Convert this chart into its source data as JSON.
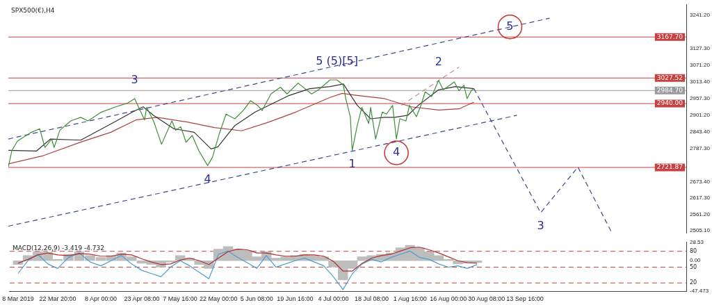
{
  "chart_data": [
    {
      "type": "line",
      "title": "SPX500(€),H4",
      "xlim": [
        "2019-03-04T21:00",
        "2019-11-13T01:00"
      ],
      "ylim": [
        2498,
        3278
      ],
      "yticks": [
        {
          "value": 3241.2,
          "label": "3241.20"
        },
        {
          "value": 3127.3,
          "label": "3127.30"
        },
        {
          "value": 3071.2,
          "label": "3071.20"
        },
        {
          "value": 3013.4,
          "label": "3013.40"
        },
        {
          "value": 2957.3,
          "label": "2957.30"
        },
        {
          "value": 2901.2,
          "label": "2901.20"
        },
        {
          "value": 2843.4,
          "label": "2843.40"
        },
        {
          "value": 2787.3,
          "label": "2787.30"
        },
        {
          "value": 2673.4,
          "label": "2673.40"
        },
        {
          "value": 2617.3,
          "label": "2617.30"
        },
        {
          "value": 2561.2,
          "label": "2561.20"
        },
        {
          "value": 2505.1,
          "label": "2505.10"
        }
      ],
      "tick_labels": "y",
      "grid": false,
      "legend": false,
      "series": [
        {
          "color": "#3f8f3a",
          "line_style": "solid",
          "x": [
            "2019-03-04T21:00",
            "2019-03-06T05:00",
            "2019-03-08T07:00",
            "2019-03-13T12:00",
            "2019-03-16T14:00",
            "2019-03-18T13:00",
            "2019-03-21T01:00",
            "2019-03-21T23:00",
            "2019-03-24T03:00",
            "2019-03-28T04:00",
            "2019-03-31T21:00",
            "2019-04-03T15:00",
            "2019-04-08T15:00",
            "2019-04-14T00:00",
            "2019-04-18T06:00",
            "2019-04-21T01:00",
            "2019-04-24T18:00",
            "2019-04-25T12:00",
            "2019-04-28T02:00",
            "2019-05-01T02:00",
            "2019-05-04T23:00",
            "2019-05-06T09:00",
            "2019-05-08T06:00",
            "2019-05-10T06:00",
            "2019-05-12T13:00",
            "2019-05-14T23:00",
            "2019-05-18T07:00",
            "2019-05-20T03:00",
            "2019-05-22T14:00",
            "2019-05-25T04:00",
            "2019-05-28T11:00",
            "2019-05-31T18:00",
            "2019-06-03T08:00",
            "2019-06-05T22:00",
            "2019-06-07T15:00",
            "2019-06-10T22:00",
            "2019-06-14T12:00",
            "2019-06-16T23:00",
            "2019-06-21T02:00",
            "2019-06-26T03:00",
            "2019-06-28T17:00",
            "2019-07-03T00:00",
            "2019-07-05T14:00",
            "2019-07-08T00:00",
            "2019-07-08T21:00",
            "2019-07-10T14:00",
            "2019-07-11T07:00",
            "2019-07-13T04:00",
            "2019-07-14T21:00",
            "2019-07-17T11:00",
            "2019-07-18T04:00",
            "2019-07-20T01:00",
            "2019-07-22T12:00",
            "2019-07-24T02:00",
            "2019-07-26T09:00",
            "2019-07-27T19:00",
            "2019-07-29T02:00",
            "2019-07-31T09:00",
            "2019-08-01T16:00",
            "2019-08-04T06:00",
            "2019-08-05T16:00",
            "2019-08-07T13:00",
            "2019-08-09T23:00",
            "2019-08-12T13:00",
            "2019-08-14T07:00",
            "2019-08-18T10:00",
            "2019-08-20T04:00",
            "2019-08-22T00:00",
            "2019-08-23T04:00",
            "2019-08-24T18:00",
            "2019-08-25T18:00"
          ],
          "values": [
            2723,
            2780,
            2812,
            2842,
            2854,
            2790,
            2819,
            2790,
            2849,
            2881,
            2893,
            2881,
            2911,
            2929,
            2941,
            2957,
            2884,
            2927,
            2881,
            2801,
            2881,
            2849,
            2861,
            2808,
            2831,
            2780,
            2728,
            2757,
            2835,
            2904,
            2888,
            2918,
            2950,
            2934,
            2916,
            2973,
            2996,
            2973,
            3010,
            2973,
            2987,
            3021,
            3021,
            3003,
            2957,
            2895,
            2780,
            2865,
            2927,
            2872,
            2927,
            2819,
            2911,
            2904,
            2934,
            2819,
            2888,
            2881,
            2934,
            2895,
            2927,
            2980,
            2964,
            3019,
            2987,
            3014,
            2984,
            3003,
            2957,
            2984,
            2991
          ]
        },
        {
          "color": "#333333",
          "line_style": "solid",
          "x": [
            "2019-03-04T21:00",
            "2019-03-15T10:00",
            "2019-03-20T15:00",
            "2019-03-31T21:00",
            "2019-04-12T03:00",
            "2019-04-20T06:00",
            "2019-04-24T05:00",
            "2019-04-28T02:00",
            "2019-05-05T16:00",
            "2019-05-13T06:00",
            "2019-05-19T14:00",
            "2019-05-22T03:00",
            "2019-05-28T11:00",
            "2019-06-05T01:00",
            "2019-06-17T19:00",
            "2019-06-25T10:00",
            "2019-07-03T00:00",
            "2019-07-08T00:00",
            "2019-07-13T04:00",
            "2019-07-18T04:00",
            "2019-07-23T08:00",
            "2019-07-27T02:00",
            "2019-08-01T02:00",
            "2019-08-04T23:00",
            "2019-08-12T13:00",
            "2019-08-18T21:00",
            "2019-08-25T18:00"
          ],
          "values": [
            2780,
            2778,
            2819,
            2815,
            2870,
            2911,
            2929,
            2900,
            2854,
            2842,
            2785,
            2792,
            2865,
            2911,
            2968,
            2991,
            2998,
            3007,
            2934,
            2888,
            2893,
            2893,
            2900,
            2934,
            2987,
            2998,
            2991
          ]
        },
        {
          "color": "#b04040",
          "line_style": "solid",
          "x": [
            "2019-03-04T21:00",
            "2019-03-17T22:00",
            "2019-03-31T21:00",
            "2019-04-12T03:00",
            "2019-04-21T12:00",
            "2019-04-29T08:00",
            "2019-05-10T16:00",
            "2019-05-20T20:00",
            "2019-05-31T01:00",
            "2019-06-10T05:00",
            "2019-06-20T06:00",
            "2019-07-03T00:00",
            "2019-07-07T14:00",
            "2019-07-13T04:00",
            "2019-07-23T08:00",
            "2019-08-02T09:00",
            "2019-08-12T13:00",
            "2019-08-20T04:00",
            "2019-08-25T18:00"
          ],
          "values": [
            2734,
            2762,
            2808,
            2842,
            2884,
            2893,
            2877,
            2858,
            2847,
            2877,
            2911,
            2961,
            2975,
            2968,
            2957,
            2929,
            2918,
            2922,
            2945
          ]
        },
        {
          "color": "#3a4a8c",
          "line_style": "dashed",
          "x": [
            "2019-03-04T21:00",
            "2019-09-23T00:00"
          ],
          "values": [
            2819,
            3232
          ]
        },
        {
          "color": "#3a4a8c",
          "line_style": "dashed",
          "x": [
            "2019-03-04T21:00",
            "2019-09-10T19:00"
          ],
          "values": [
            2521,
            2900
          ]
        },
        {
          "color": "#c89090",
          "line_style": "dashed",
          "x": [
            "2019-07-29T16:00",
            "2019-08-20T04:00"
          ],
          "values": [
            2934,
            3065
          ]
        },
        {
          "color": "#3a4a8c",
          "line_style": "dashed",
          "x": [
            "2019-08-25T18:00",
            "2019-09-19T16:00",
            "2019-10-03T14:00",
            "2019-10-16T05:00"
          ],
          "values": [
            2991,
            2567,
            2723,
            2499
          ]
        }
      ],
      "ref_lines": [
        {
          "axis": "y",
          "value": 3167.7,
          "label": "3167.70",
          "color": "#c84040"
        },
        {
          "axis": "y",
          "value": 3027.52,
          "label": "3027.52",
          "color": "#c84040"
        },
        {
          "axis": "y",
          "value": 2984.7,
          "label": "2984.70",
          "color": "#9a9a9a"
        },
        {
          "axis": "y",
          "value": 2940,
          "label": "2940.00",
          "color": "#c84040"
        },
        {
          "axis": "y",
          "value": 2721.87,
          "label": "2721.87",
          "color": "#c84040"
        }
      ],
      "annotations": [
        {
          "text": "3",
          "x": "2019-04-21T01:00",
          "y": 2957
        },
        {
          "text": "4",
          "x": "2019-05-18T07:00",
          "y": 2728
        },
        {
          "text": "5 (5)[5]",
          "x": "2019-07-05T14:00",
          "y": 3021
        },
        {
          "text": "1",
          "x": "2019-07-11T07:00",
          "y": 2780
        },
        {
          "text": "4",
          "x": "2019-07-27T19:00",
          "y": 2819
        },
        {
          "text": "2",
          "x": "2019-08-12T13:00",
          "y": 3019
        },
        {
          "text": "5",
          "x": "2019-09-08T05:00",
          "y": 3202
        },
        {
          "text": "3",
          "x": "2019-09-19T16:00",
          "y": 2567
        }
      ]
    },
    {
      "type": "bar",
      "title": "MACD(12,26,9) -3.419 -4.732",
      "xlim": [
        "2019-03-04T21:00",
        "2019-11-13T01:00"
      ],
      "xticks": [
        {
          "value": "2019-03-08T00:00",
          "label": "8 Mar 2019"
        },
        {
          "value": "2019-03-22T20:00",
          "label": "22 Mar 20:00"
        },
        {
          "value": "2019-04-08T00:00",
          "label": "8 Apr 00:00"
        },
        {
          "value": "2019-04-23T08:00",
          "label": "23 Apr 08:00"
        },
        {
          "value": "2019-05-07T16:00",
          "label": "7 May 16:00"
        },
        {
          "value": "2019-05-22T00:00",
          "label": "22 May 00:00"
        },
        {
          "value": "2019-06-05T08:00",
          "label": "5 Jun 08:00"
        },
        {
          "value": "2019-06-19T16:00",
          "label": "19 Jun 16:00"
        },
        {
          "value": "2019-07-04T00:00",
          "label": "4 Jul 00:00"
        },
        {
          "value": "2019-07-18T08:00",
          "label": "18 Jul 08:00"
        },
        {
          "value": "2019-08-01T16:00",
          "label": "1 Aug 16:00"
        },
        {
          "value": "2019-08-16T00:00",
          "label": "16 Aug 00:00"
        },
        {
          "value": "2019-08-30T08:00",
          "label": "30 Aug 08:00"
        },
        {
          "value": "2019-09-13T16:00",
          "label": "13 Sep 16:00"
        }
      ],
      "ylim": [
        -47.473,
        28.53
      ],
      "yticks": [
        28.53,
        {
          "value": 0,
          "label": "0.00"
        },
        -47.473
      ],
      "y2lim": [
        4.3,
        97
      ],
      "y2ticks": [
        80,
        50,
        20
      ],
      "grid": false,
      "legend": false,
      "x": [
        "2019-03-08T00:00",
        "2019-03-11T17:00",
        "2019-03-15T10:00",
        "2019-03-19T03:00",
        "2019-03-22T20:00",
        "2019-03-26T21:00",
        "2019-03-30T22:00",
        "2019-04-03T23:00",
        "2019-04-08T00:00",
        "2019-04-11T20:00",
        "2019-04-15T16:00",
        "2019-04-19T12:00",
        "2019-04-23T08:00",
        "2019-04-26T22:00",
        "2019-04-30T12:00",
        "2019-05-04T02:00",
        "2019-05-07T16:00",
        "2019-05-11T06:00",
        "2019-05-14T20:00",
        "2019-05-18T10:00",
        "2019-05-22T00:00",
        "2019-05-25T14:00",
        "2019-05-29T04:00",
        "2019-06-01T18:00",
        "2019-06-05T08:00",
        "2019-06-08T22:00",
        "2019-06-12T12:00",
        "2019-06-16T02:00",
        "2019-06-19T16:00",
        "2019-06-23T06:00",
        "2019-06-26T20:00",
        "2019-06-30T10:00",
        "2019-07-04T00:00",
        "2019-07-07T14:00",
        "2019-07-11T04:00",
        "2019-07-14T18:00",
        "2019-07-18T08:00",
        "2019-07-21T22:00",
        "2019-07-25T12:00",
        "2019-07-29T02:00",
        "2019-08-01T16:00",
        "2019-08-05T06:00",
        "2019-08-08T20:00",
        "2019-08-12T10:00",
        "2019-08-16T00:00",
        "2019-08-19T14:00",
        "2019-08-23T04:00",
        "2019-08-26T18:00"
      ],
      "series": [
        {
          "color": "#bdbdbd",
          "values": [
            -6,
            8,
            14,
            13,
            2,
            10,
            14,
            8,
            5,
            8,
            12,
            6,
            -4,
            -6,
            -10,
            -2,
            8,
            4,
            -6,
            -12,
            18,
            22,
            18,
            16,
            6,
            14,
            4,
            6,
            8,
            10,
            8,
            6,
            -10,
            -30,
            -12,
            6,
            8,
            10,
            12,
            20,
            24,
            20,
            14,
            8,
            2,
            -5,
            -4,
            -3
          ]
        },
        {
          "type": "line",
          "color": "#b03030",
          "line_style": "solid",
          "values": [
            -4,
            2,
            9,
            12,
            9,
            8,
            11,
            10,
            7,
            7,
            10,
            9,
            3,
            -2,
            -6,
            -5,
            1,
            4,
            0,
            -6,
            4,
            14,
            18,
            17,
            12,
            12,
            9,
            7,
            7,
            9,
            9,
            7,
            -1,
            -16,
            -16,
            -4,
            4,
            8,
            10,
            15,
            20,
            21,
            17,
            12,
            6,
            0,
            -3,
            -4
          ]
        },
        {
          "type": "line",
          "color": "#4a9fd0",
          "line_style": "solid",
          "values": [
            -20,
            0,
            10,
            -5,
            -12,
            5,
            12,
            -2,
            -8,
            0,
            8,
            -5,
            -15,
            -20,
            -25,
            -10,
            0,
            -8,
            -18,
            -28,
            10,
            15,
            5,
            -3,
            -12,
            8,
            -10,
            -5,
            0,
            4,
            -2,
            -8,
            -25,
            -45,
            -20,
            -5,
            2,
            -2,
            5,
            10,
            15,
            5,
            2,
            -5,
            -10,
            -8,
            -12,
            -6
          ]
        }
      ],
      "ref_lines": [
        {
          "axis": "y2",
          "value": 80,
          "color": "#c84040",
          "line_style": "dashed"
        },
        {
          "axis": "y2",
          "value": 50,
          "color": "#c84040",
          "line_style": "dashed"
        },
        {
          "axis": "y2",
          "value": 20,
          "color": "#c84040",
          "line_style": "dashed"
        }
      ]
    }
  ]
}
